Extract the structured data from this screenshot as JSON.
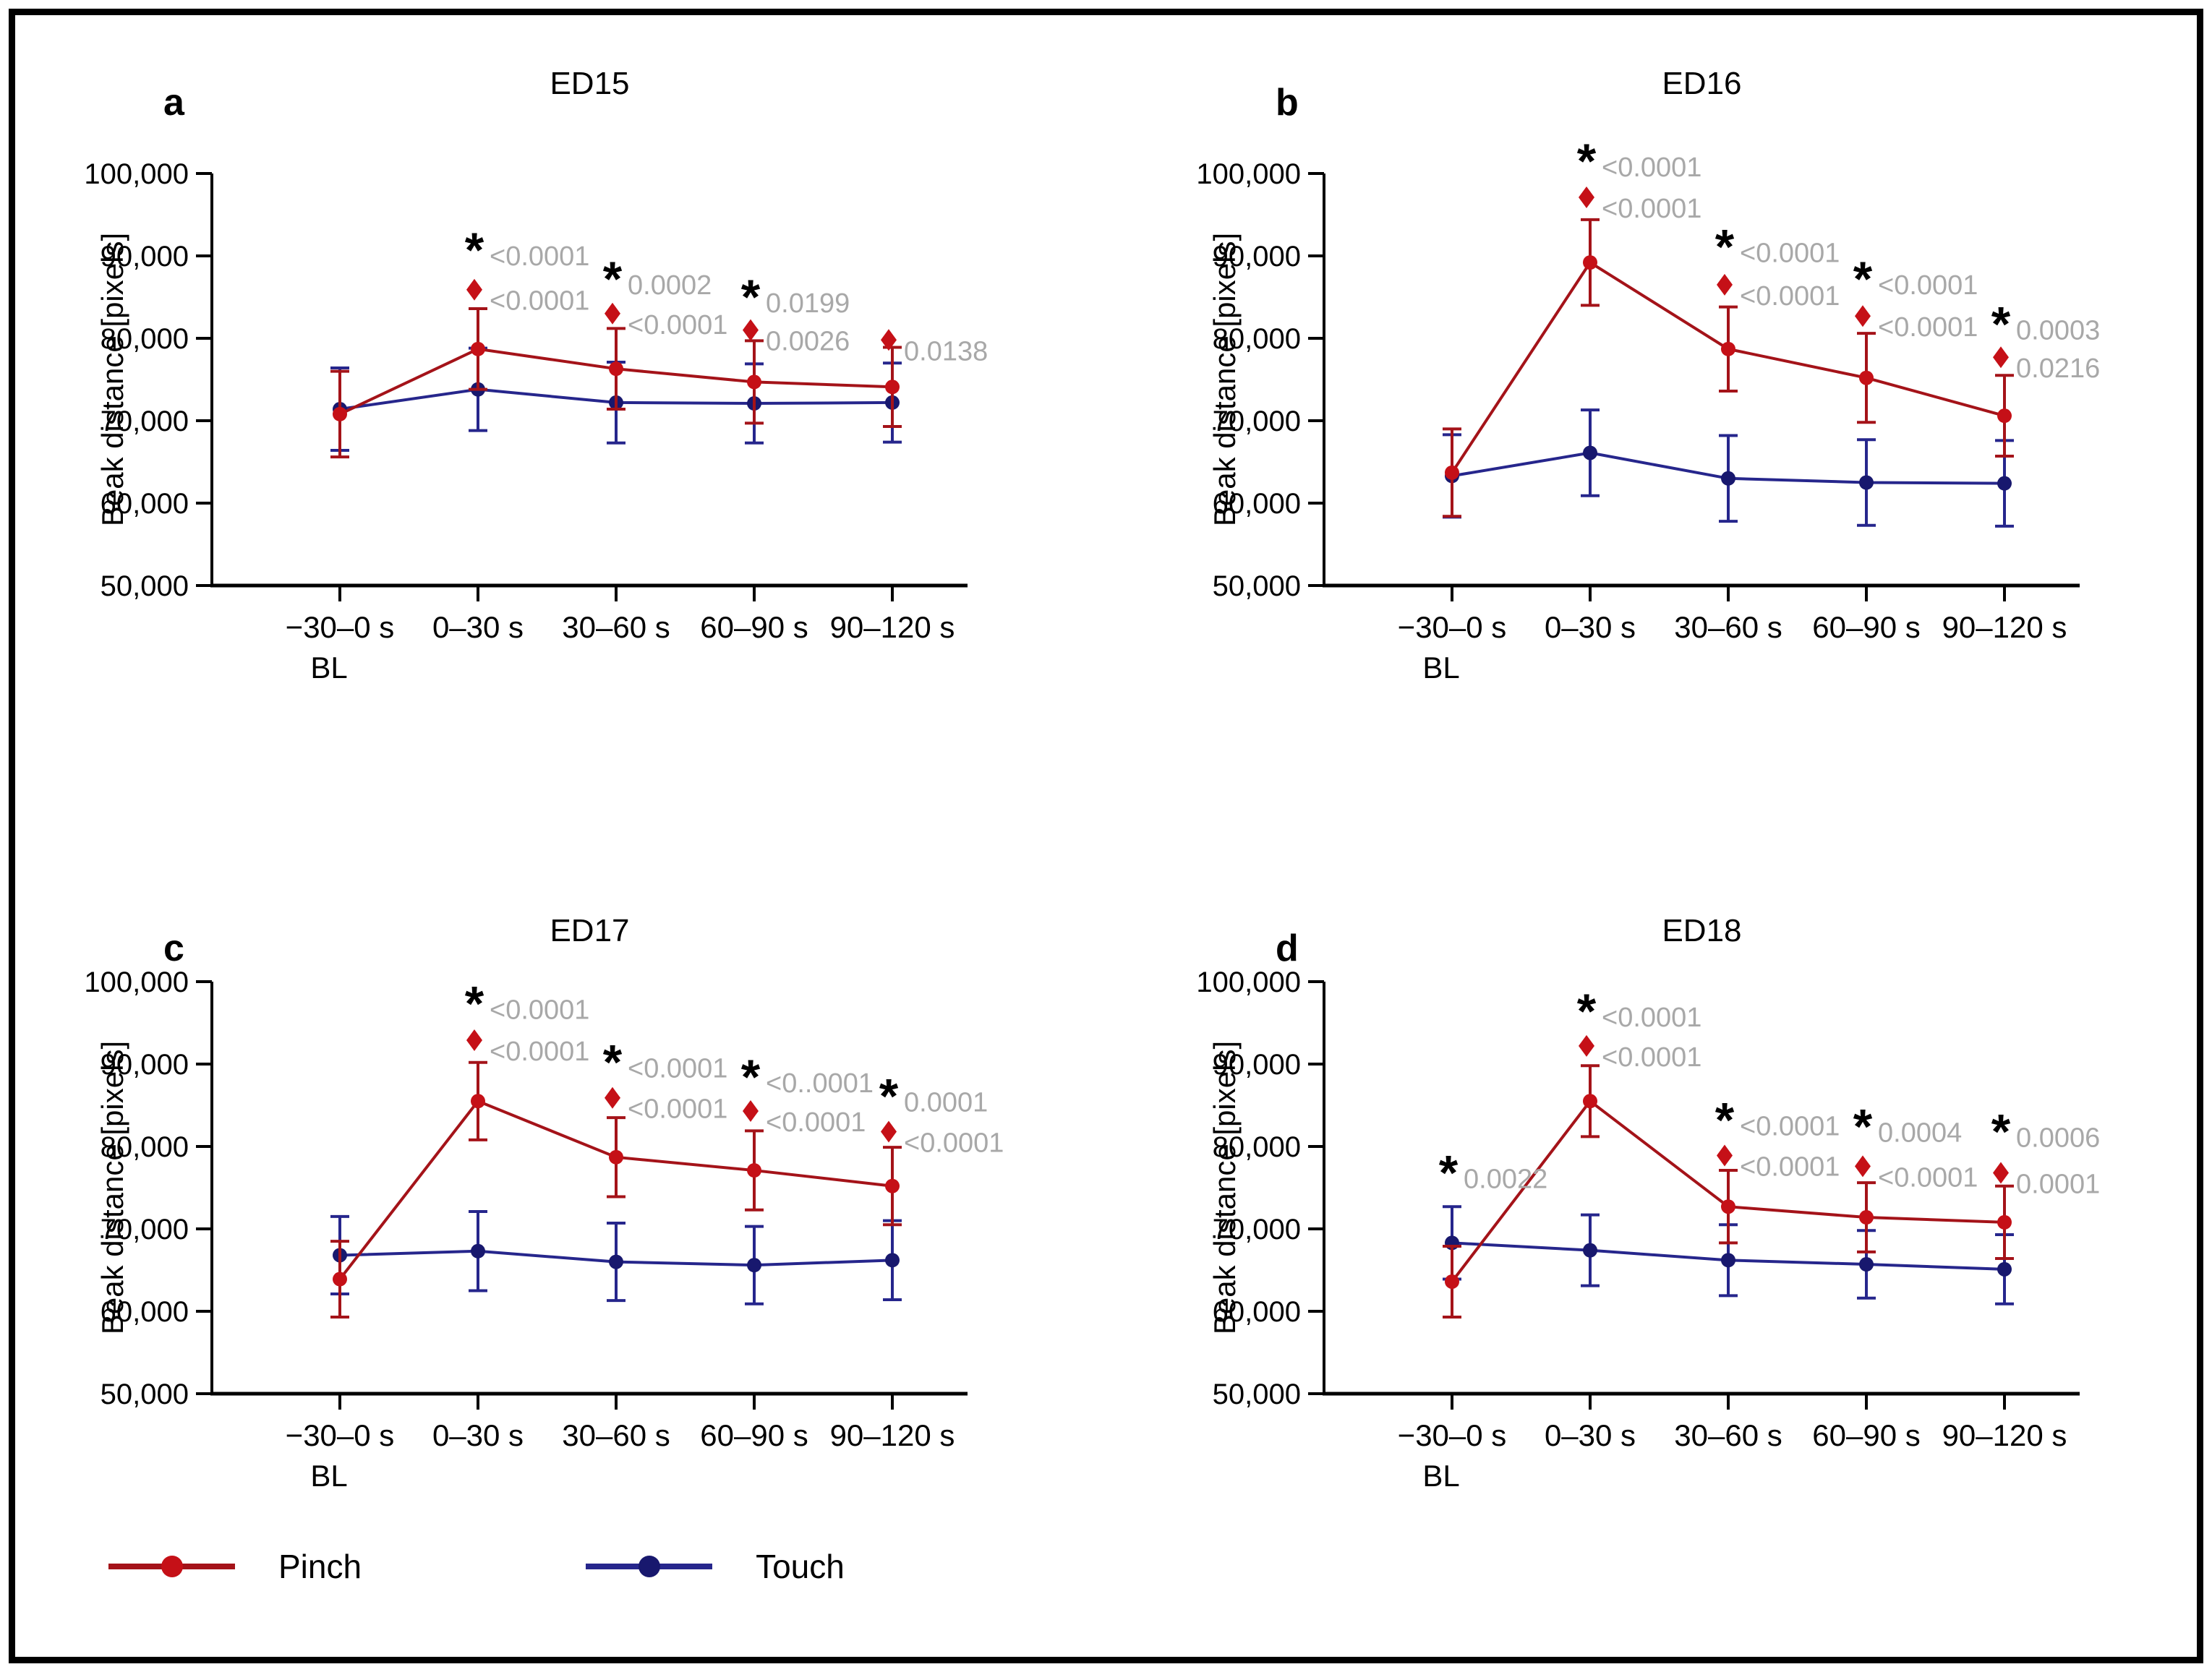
{
  "figure": {
    "background": "#ffffff",
    "border_color": "#000000"
  },
  "axis": {
    "y_label": "Beak distance [pixels]",
    "y_ticks": [
      "100,000",
      "90,000",
      "80,000",
      "70,000",
      "60,000",
      "50,000"
    ],
    "y_min": 50000,
    "y_max": 100000,
    "x_labels": [
      "−30–0 s",
      "0–30 s",
      "30–60 s",
      "60–90 s",
      "90–120 s"
    ],
    "x_sublabel": "BL"
  },
  "colors": {
    "pinch_line": "#a41319",
    "pinch_marker": "#c51017",
    "touch_line": "#26268c",
    "touch_marker": "#18186e",
    "annotation_text": "#a8a8a8",
    "star": "#000000",
    "axis": "#000000"
  },
  "legend": {
    "items": [
      {
        "label": "Pinch",
        "color": "#a41319",
        "marker": "#c51017"
      },
      {
        "label": "Touch",
        "color": "#26268c",
        "marker": "#18186e"
      }
    ]
  },
  "chart_data": [
    {
      "type": "line",
      "letter": "a",
      "title": "ED15",
      "categories": [
        "−30–0 s BL",
        "0–30 s",
        "30–60 s",
        "60–90 s",
        "90–120 s"
      ],
      "ylim": [
        50000,
        100000
      ],
      "series": [
        {
          "name": "Pinch",
          "values": [
            70800,
            78700,
            76300,
            74700,
            74100
          ],
          "errors": [
            5200,
            4900,
            4900,
            5000,
            4800
          ]
        },
        {
          "name": "Touch",
          "values": [
            71400,
            73800,
            72200,
            72100,
            72200
          ],
          "errors": [
            5000,
            5000,
            4900,
            4800,
            4800
          ]
        }
      ],
      "annotations": [
        {
          "x": 1,
          "star": {
            "value": 91500,
            "label": "<0.0001"
          },
          "diamond": {
            "value": 85900,
            "label": "<0.0001"
          }
        },
        {
          "x": 2,
          "star": {
            "value": 88000,
            "label": "0.0002"
          },
          "diamond": {
            "value": 83000,
            "label": "<0.0001"
          }
        },
        {
          "x": 3,
          "star": {
            "value": 85800,
            "label": "0.0199"
          },
          "diamond": {
            "value": 81000,
            "label": "0.0026"
          }
        },
        {
          "x": 4,
          "diamond": {
            "value": 79800,
            "label": "0.0138"
          }
        }
      ]
    },
    {
      "type": "line",
      "letter": "b",
      "title": "ED16",
      "categories": [
        "−30–0 s BL",
        "0–30 s",
        "30–60 s",
        "60–90 s",
        "90–120 s"
      ],
      "ylim": [
        50000,
        100000
      ],
      "series": [
        {
          "name": "Pinch",
          "values": [
            63700,
            89200,
            78700,
            75200,
            70600
          ],
          "errors": [
            5300,
            5200,
            5100,
            5400,
            4900
          ]
        },
        {
          "name": "Touch",
          "values": [
            63300,
            66100,
            63000,
            62500,
            62400
          ],
          "errors": [
            5000,
            5200,
            5200,
            5200,
            5200
          ]
        }
      ],
      "annotations": [
        {
          "x": 1,
          "star": {
            "value": 102300,
            "label": "<0.0001"
          },
          "diamond": {
            "value": 97100,
            "label": "<0.0001"
          }
        },
        {
          "x": 2,
          "star": {
            "value": 91900,
            "label": "<0.0001"
          },
          "diamond": {
            "value": 86500,
            "label": "<0.0001"
          }
        },
        {
          "x": 3,
          "star": {
            "value": 88000,
            "label": "<0.0001"
          },
          "diamond": {
            "value": 82700,
            "label": "<0.0001"
          }
        },
        {
          "x": 4,
          "star": {
            "value": 82500,
            "label": "0.0003"
          },
          "diamond": {
            "value": 77700,
            "label": "0.0216"
          }
        }
      ]
    },
    {
      "type": "line",
      "letter": "c",
      "title": "ED17",
      "categories": [
        "−30–0 s BL",
        "0–30 s",
        "30–60 s",
        "60–90 s",
        "90–120 s"
      ],
      "ylim": [
        50000,
        100000
      ],
      "series": [
        {
          "name": "Pinch",
          "values": [
            63900,
            85500,
            78700,
            77100,
            75200
          ],
          "errors": [
            4600,
            4700,
            4800,
            4800,
            4700
          ]
        },
        {
          "name": "Touch",
          "values": [
            66800,
            67300,
            66000,
            65600,
            66200
          ],
          "errors": [
            4700,
            4800,
            4700,
            4700,
            4800
          ]
        }
      ],
      "annotations": [
        {
          "x": 1,
          "star": {
            "value": 98100,
            "label": "<0.0001"
          },
          "diamond": {
            "value": 92900,
            "label": "<0.0001"
          }
        },
        {
          "x": 2,
          "star": {
            "value": 91000,
            "label": "<0.0001"
          },
          "diamond": {
            "value": 85900,
            "label": "<0.0001"
          }
        },
        {
          "x": 3,
          "star": {
            "value": 89200,
            "label": "<0..0001"
          },
          "diamond": {
            "value": 84300,
            "label": "<0.0001"
          }
        },
        {
          "x": 4,
          "star": {
            "value": 86900,
            "label": "0.0001"
          },
          "diamond": {
            "value": 81800,
            "label": "<0.0001"
          }
        }
      ]
    },
    {
      "type": "line",
      "letter": "d",
      "title": "ED18",
      "categories": [
        "−30–0 s BL",
        "0–30 s",
        "30–60 s",
        "60–90 s",
        "90–120 s"
      ],
      "ylim": [
        50000,
        100000
      ],
      "series": [
        {
          "name": "Pinch",
          "values": [
            63600,
            85500,
            72700,
            71400,
            70800
          ],
          "errors": [
            4300,
            4300,
            4400,
            4200,
            4400
          ]
        },
        {
          "name": "Touch",
          "values": [
            68300,
            67400,
            66200,
            65700,
            65100
          ],
          "errors": [
            4400,
            4300,
            4300,
            4100,
            4200
          ]
        }
      ],
      "annotations": [
        {
          "x": 0,
          "star": {
            "value": 77600,
            "label": "0.0022"
          }
        },
        {
          "x": 1,
          "star": {
            "value": 97200,
            "label": "<0.0001"
          },
          "diamond": {
            "value": 92200,
            "label": "<0.0001"
          }
        },
        {
          "x": 2,
          "star": {
            "value": 84000,
            "label": "<0.0001"
          },
          "diamond": {
            "value": 78900,
            "label": "<0.0001"
          }
        },
        {
          "x": 3,
          "star": {
            "value": 83200,
            "label": "0.0004"
          },
          "diamond": {
            "value": 77600,
            "label": "<0.0001"
          }
        },
        {
          "x": 4,
          "star": {
            "value": 82600,
            "label": "0.0006"
          },
          "diamond": {
            "value": 76800,
            "label": "0.0001"
          }
        }
      ]
    }
  ]
}
